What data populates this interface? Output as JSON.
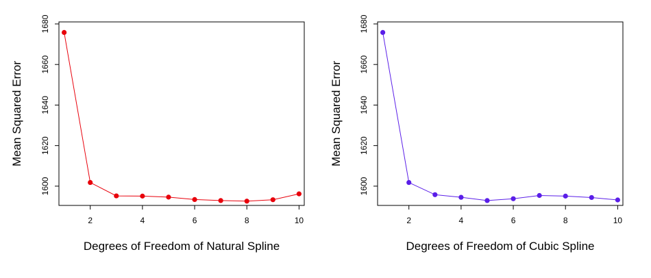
{
  "chart_data": [
    {
      "type": "line",
      "title": "",
      "xlabel": "Degrees of Freedom of Natural Spline",
      "ylabel": "Mean Squared Error",
      "xlim": [
        0.8,
        10.2
      ],
      "ylim": [
        1590.5,
        1681
      ],
      "xticks": [
        2,
        4,
        6,
        8,
        10
      ],
      "yticks": [
        1600,
        1620,
        1640,
        1660,
        1680
      ],
      "grid": false,
      "color": "#e8000b",
      "series": [
        {
          "x": [
            1,
            2,
            3,
            4,
            5,
            6,
            7,
            8,
            9,
            10
          ],
          "y": [
            1675.8,
            1601.8,
            1595.2,
            1595.1,
            1594.6,
            1593.4,
            1592.9,
            1592.6,
            1593.3,
            1596.2
          ]
        }
      ]
    },
    {
      "type": "line",
      "title": "",
      "xlabel": "Degrees of Freedom of Cubic Spline",
      "ylabel": "Mean Squared Error",
      "xlim": [
        0.8,
        10.2
      ],
      "ylim": [
        1590.5,
        1681
      ],
      "xticks": [
        2,
        4,
        6,
        8,
        10
      ],
      "yticks": [
        1600,
        1620,
        1640,
        1660,
        1680
      ],
      "grid": false,
      "color": "#5a1ee8",
      "series": [
        {
          "x": [
            1,
            2,
            3,
            4,
            5,
            6,
            7,
            8,
            9,
            10
          ],
          "y": [
            1675.8,
            1601.8,
            1595.8,
            1594.5,
            1592.9,
            1593.8,
            1595.4,
            1595.1,
            1594.4,
            1593.2
          ]
        }
      ]
    }
  ]
}
